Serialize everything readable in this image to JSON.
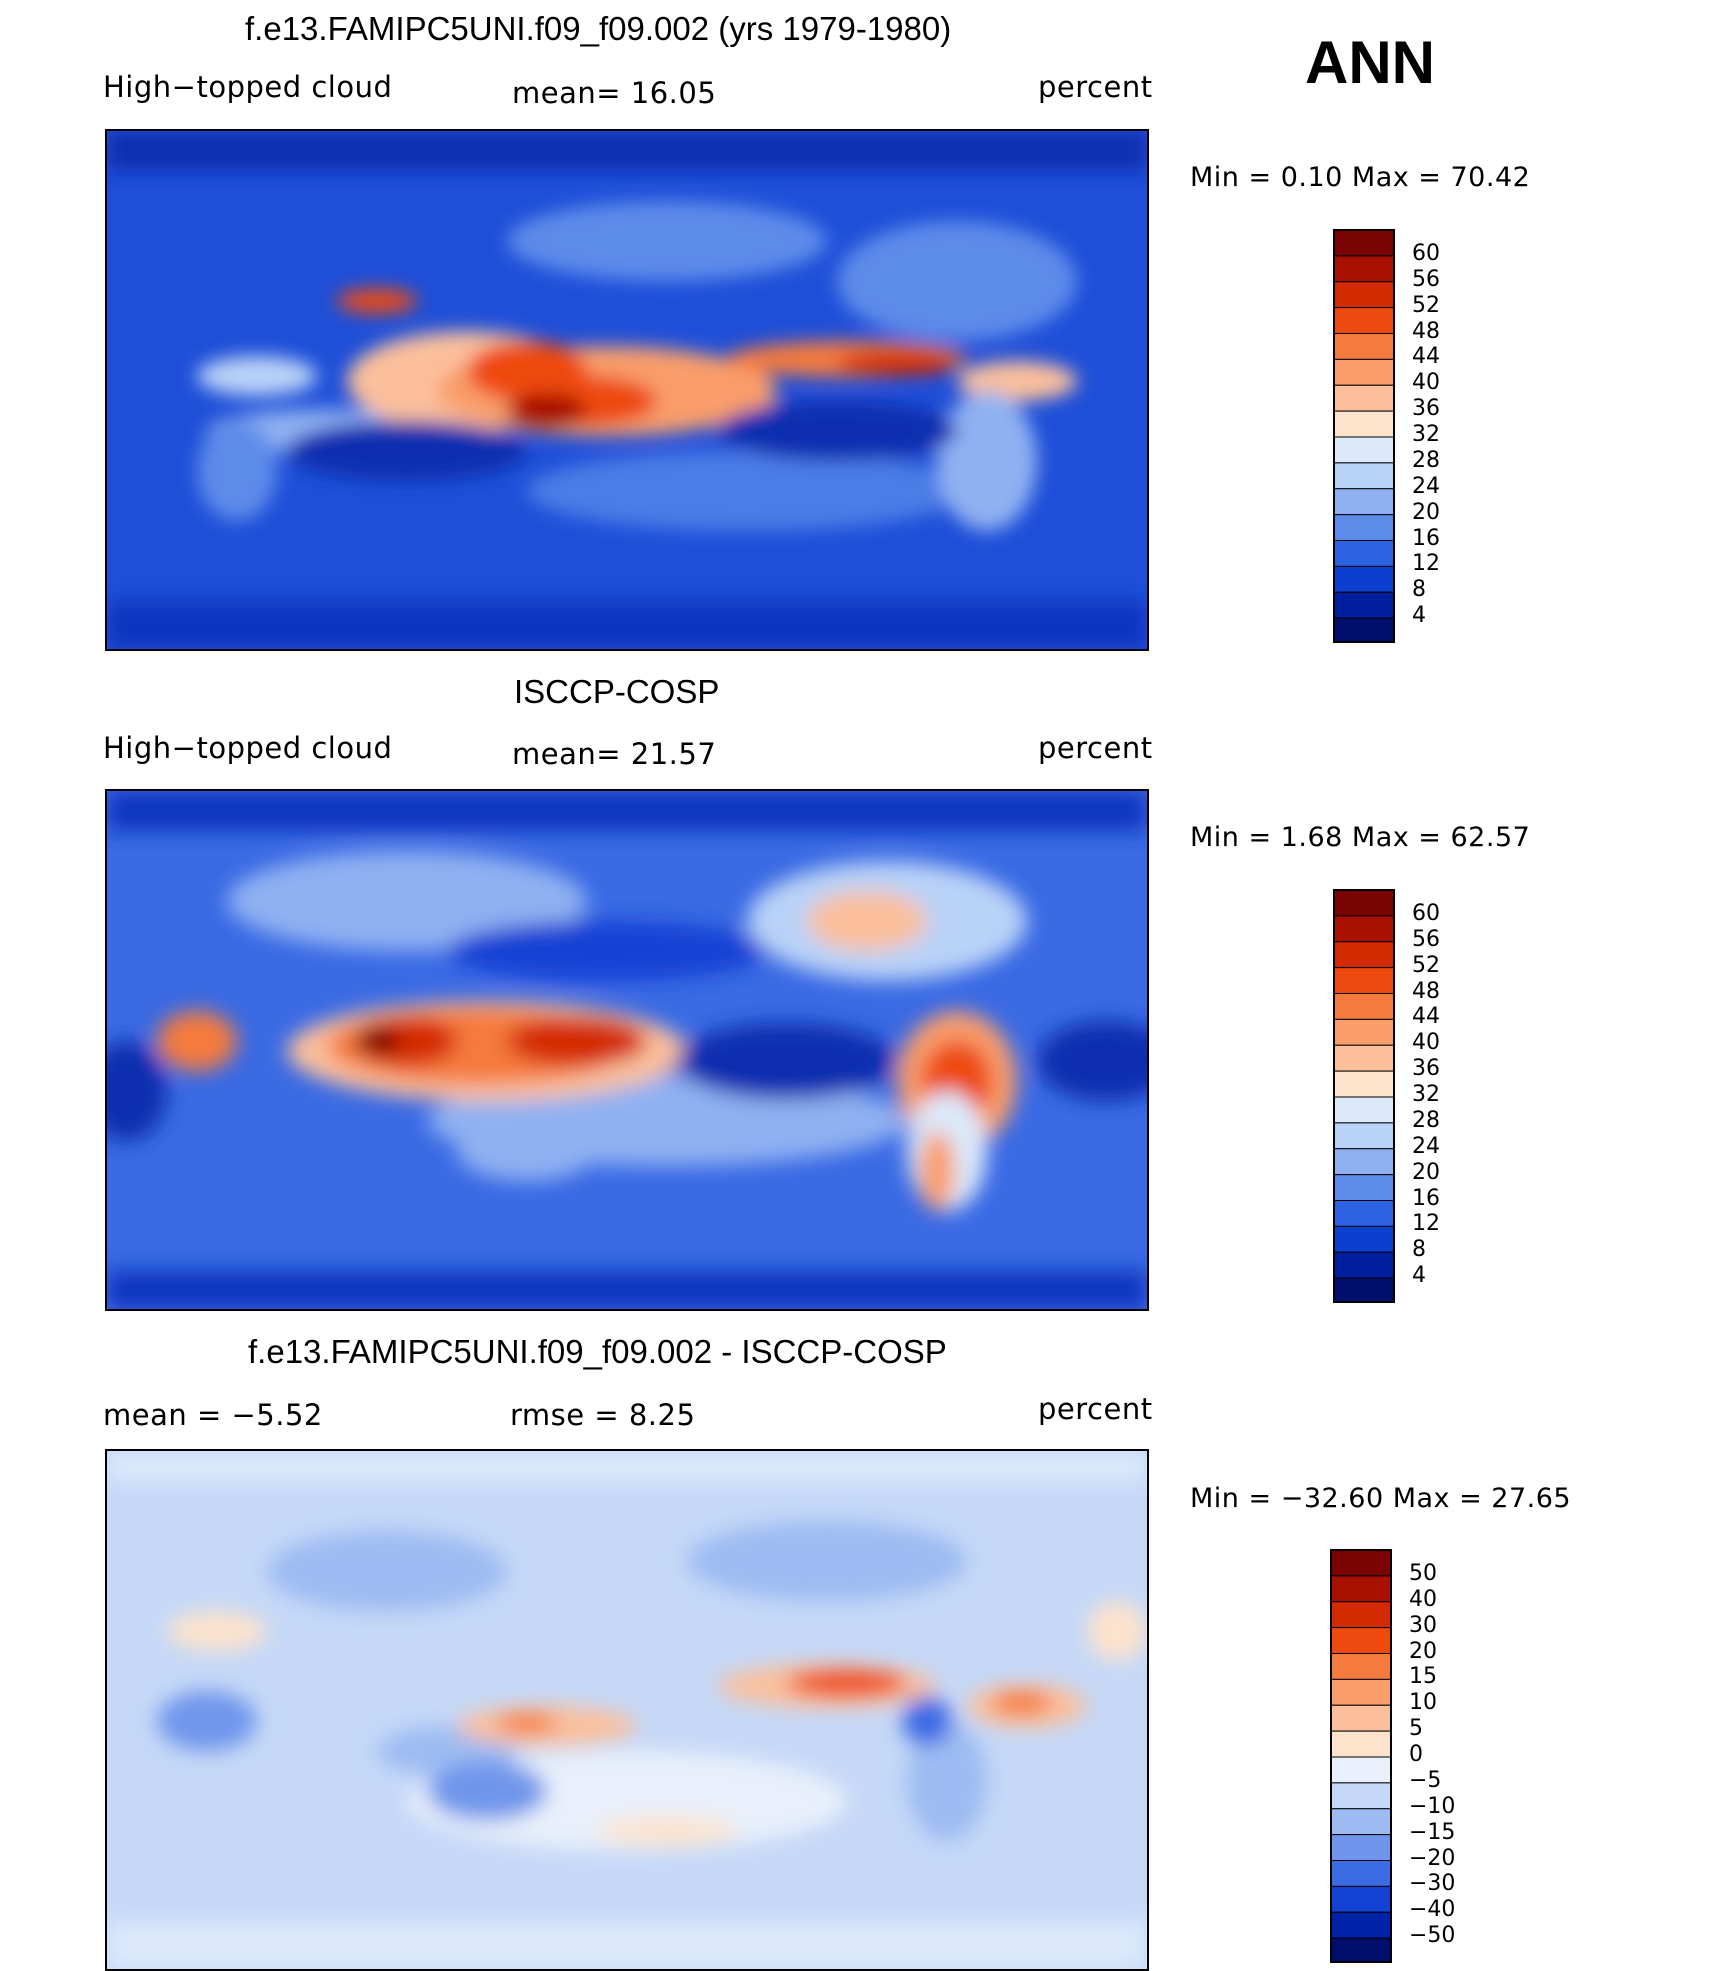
{
  "season": "ANN",
  "panels": [
    {
      "title": "f.e13.FAMIPC5UNI.f09_f09.002 (yrs 1979-1980)",
      "left_text": "High−topped cloud",
      "center_text": "mean=   16.05",
      "right_text": "percent",
      "minmax": "Min  =    0.10  Max  =    70.42",
      "colorbar": {
        "labels": [
          "60",
          "56",
          "52",
          "48",
          "44",
          "40",
          "36",
          "32",
          "28",
          "24",
          "20",
          "16",
          "12",
          "8",
          "4"
        ],
        "colors": [
          "#7a0403",
          "#a81000",
          "#d42a00",
          "#ee4a10",
          "#f57a3e",
          "#f99d6b",
          "#fbbf9b",
          "#fde3cc",
          "#dbe9fb",
          "#b9d2f8",
          "#8fb1f2",
          "#5d8bea",
          "#2c63e2",
          "#0a3fd0",
          "#001f9e",
          "#000f6c"
        ]
      }
    },
    {
      "title": "ISCCP-COSP",
      "left_text": "High−topped cloud",
      "center_text": "mean=   21.57",
      "right_text": "percent",
      "minmax": "Min  =    1.68  Max  =    62.57",
      "colorbar": {
        "labels": [
          "60",
          "56",
          "52",
          "48",
          "44",
          "40",
          "36",
          "32",
          "28",
          "24",
          "20",
          "16",
          "12",
          "8",
          "4"
        ],
        "colors": [
          "#7a0403",
          "#a81000",
          "#d42a00",
          "#ee4a10",
          "#f57a3e",
          "#f99d6b",
          "#fbbf9b",
          "#fde3cc",
          "#dbe9fb",
          "#b9d2f8",
          "#8fb1f2",
          "#5d8bea",
          "#2c63e2",
          "#0a3fd0",
          "#001f9e",
          "#000f6c"
        ]
      }
    },
    {
      "title": "f.e13.FAMIPC5UNI.f09_f09.002 - ISCCP-COSP",
      "left_text": "mean  =    −5.52",
      "center_text": "rmse  =     8.25",
      "right_text": "percent",
      "minmax": "Min  = −32.60  Max  =    27.65",
      "colorbar": {
        "labels": [
          "50",
          "40",
          "30",
          "20",
          "15",
          "10",
          "5",
          "0",
          "−5",
          "−10",
          "−15",
          "−20",
          "−30",
          "−40",
          "−50"
        ],
        "colors": [
          "#7a0403",
          "#a81000",
          "#d42a00",
          "#ee4a10",
          "#f57a3e",
          "#f99d6b",
          "#fbbf9b",
          "#fde3cc",
          "#e9f0fb",
          "#c5d8f7",
          "#9dbbf2",
          "#6f96ec",
          "#3c6ce4",
          "#1443d4",
          "#0022a8",
          "#000f6c"
        ]
      }
    }
  ],
  "chart_data": [
    {
      "type": "heatmap",
      "title": "f.e13.FAMIPC5UNI.f09_f09.002 (yrs 1979-1980)",
      "variable": "High−topped cloud",
      "units": "percent",
      "mean": 16.05,
      "min": 0.1,
      "max": 70.42,
      "levels": [
        4,
        8,
        12,
        16,
        20,
        24,
        28,
        32,
        36,
        40,
        44,
        48,
        52,
        56,
        60
      ]
    },
    {
      "type": "heatmap",
      "title": "ISCCP-COSP",
      "variable": "High−topped cloud",
      "units": "percent",
      "mean": 21.57,
      "min": 1.68,
      "max": 62.57,
      "levels": [
        4,
        8,
        12,
        16,
        20,
        24,
        28,
        32,
        36,
        40,
        44,
        48,
        52,
        56,
        60
      ]
    },
    {
      "type": "heatmap",
      "title": "f.e13.FAMIPC5UNI.f09_f09.002 - ISCCP-COSP",
      "units": "percent",
      "mean": -5.52,
      "rmse": 8.25,
      "min": -32.6,
      "max": 27.65,
      "levels": [
        -50,
        -40,
        -30,
        -20,
        -15,
        -10,
        -5,
        0,
        5,
        10,
        15,
        20,
        30,
        40,
        50
      ]
    }
  ]
}
